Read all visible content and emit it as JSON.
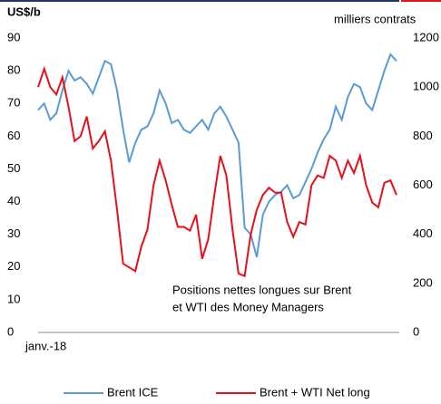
{
  "chart_data": {
    "type": "line",
    "y_label": "US$/b",
    "y2_label": "milliers contrats",
    "annotation": [
      "Positions nettes longues sur Brent",
      "et WTI des Money Managers"
    ],
    "categories": [
      "janv.-18",
      null,
      null,
      null,
      null,
      null,
      null,
      null,
      null,
      null,
      null,
      null,
      null,
      null,
      null,
      null,
      null,
      null,
      null,
      null,
      null,
      null,
      null,
      null,
      null,
      null,
      null,
      null,
      null,
      null,
      null,
      null,
      null,
      null,
      null,
      null,
      null,
      null,
      null,
      null,
      null,
      null,
      null,
      null,
      null,
      null,
      null,
      null,
      null,
      null,
      null,
      null,
      null,
      null,
      null,
      null,
      null,
      null,
      null,
      null
    ],
    "series": [
      {
        "name": "Brent ICE",
        "color": "#5b9bd5",
        "values": [
          68,
          70,
          65,
          67,
          74,
          80,
          77,
          78,
          76,
          73,
          78,
          83,
          82,
          74,
          62,
          52,
          58,
          62,
          63,
          67,
          74,
          70,
          64,
          65,
          62,
          61,
          63,
          65,
          62,
          67,
          69,
          66,
          62,
          58,
          32,
          30,
          23,
          36,
          40,
          42,
          43,
          45,
          41,
          42,
          46,
          50,
          55,
          59,
          62,
          69,
          65,
          72,
          76,
          75,
          70,
          68,
          74,
          80,
          85,
          83
        ]
      },
      {
        "name": "Brent + WTI Net long",
        "color": "#e8101a",
        "axis": "y2",
        "values": [
          1000,
          1075,
          1000,
          970,
          1040,
          920,
          780,
          800,
          880,
          750,
          780,
          820,
          700,
          500,
          280,
          265,
          250,
          350,
          420,
          600,
          700,
          620,
          520,
          430,
          430,
          415,
          480,
          300,
          380,
          560,
          720,
          640,
          420,
          240,
          230,
          400,
          500,
          560,
          590,
          570,
          570,
          450,
          390,
          450,
          440,
          600,
          640,
          630,
          720,
          700,
          630,
          700,
          650,
          720,
          600,
          530,
          510,
          610,
          620,
          560
        ]
      }
    ],
    "ylim": [
      0,
      90
    ],
    "yticks": [
      0,
      10,
      20,
      30,
      40,
      50,
      60,
      70,
      80,
      90
    ],
    "y2lim": [
      0,
      1200
    ],
    "y2ticks": [
      0,
      200,
      400,
      600,
      800,
      1000,
      1200
    ]
  }
}
